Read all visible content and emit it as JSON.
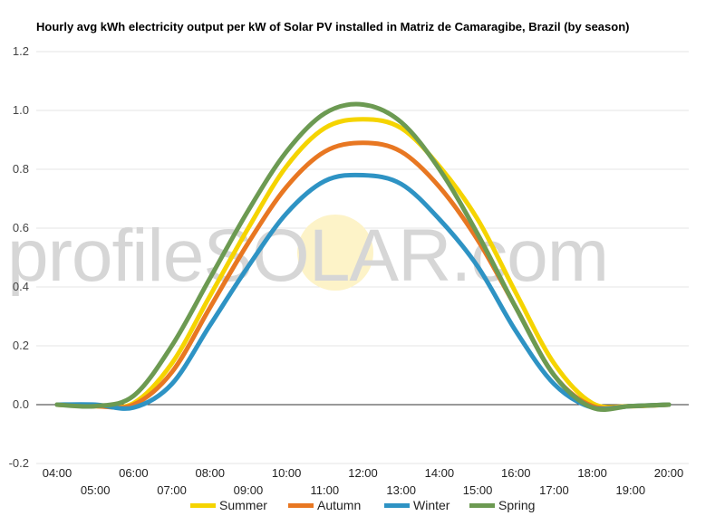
{
  "chart_data": {
    "type": "line",
    "title": "Hourly avg kWh electricity output per kW of Solar PV installed in Matriz de Camaragibe, Brazil (by season)",
    "xlabel": "",
    "ylabel": "",
    "ylim": [
      -0.2,
      1.2
    ],
    "yticks": [
      "-0.2",
      "0.0",
      "0.2",
      "0.4",
      "0.6",
      "0.8",
      "1.0",
      "1.2"
    ],
    "x": [
      "04:00",
      "05:00",
      "06:00",
      "07:00",
      "08:00",
      "09:00",
      "10:00",
      "11:00",
      "12:00",
      "13:00",
      "14:00",
      "15:00",
      "16:00",
      "17:00",
      "18:00",
      "19:00",
      "20:00"
    ],
    "grid": true,
    "legend_position": "bottom",
    "series": [
      {
        "name": "Summer",
        "color": "#f5d400",
        "values": [
          0,
          -0.005,
          0.005,
          0.14,
          0.37,
          0.6,
          0.81,
          0.94,
          0.97,
          0.94,
          0.81,
          0.63,
          0.38,
          0.14,
          0.005,
          -0.005,
          0
        ]
      },
      {
        "name": "Autumn",
        "color": "#e87722",
        "values": [
          0,
          -0.005,
          0.0,
          0.11,
          0.33,
          0.55,
          0.74,
          0.86,
          0.89,
          0.86,
          0.74,
          0.56,
          0.33,
          0.1,
          -0.005,
          -0.005,
          0
        ]
      },
      {
        "name": "Winter",
        "color": "#2e93c4",
        "values": [
          0,
          0,
          -0.01,
          0.07,
          0.27,
          0.47,
          0.65,
          0.76,
          0.78,
          0.75,
          0.63,
          0.47,
          0.25,
          0.07,
          -0.01,
          -0.005,
          0
        ]
      },
      {
        "name": "Spring",
        "color": "#6c9a52",
        "values": [
          0,
          -0.005,
          0.03,
          0.2,
          0.43,
          0.66,
          0.86,
          0.99,
          1.02,
          0.96,
          0.8,
          0.58,
          0.33,
          0.1,
          -0.01,
          -0.005,
          0
        ]
      }
    ]
  },
  "watermark": {
    "part1": "profile",
    "part2": "SOLAR",
    "part3": ".com",
    "sun_color": "#fdf3c8"
  }
}
